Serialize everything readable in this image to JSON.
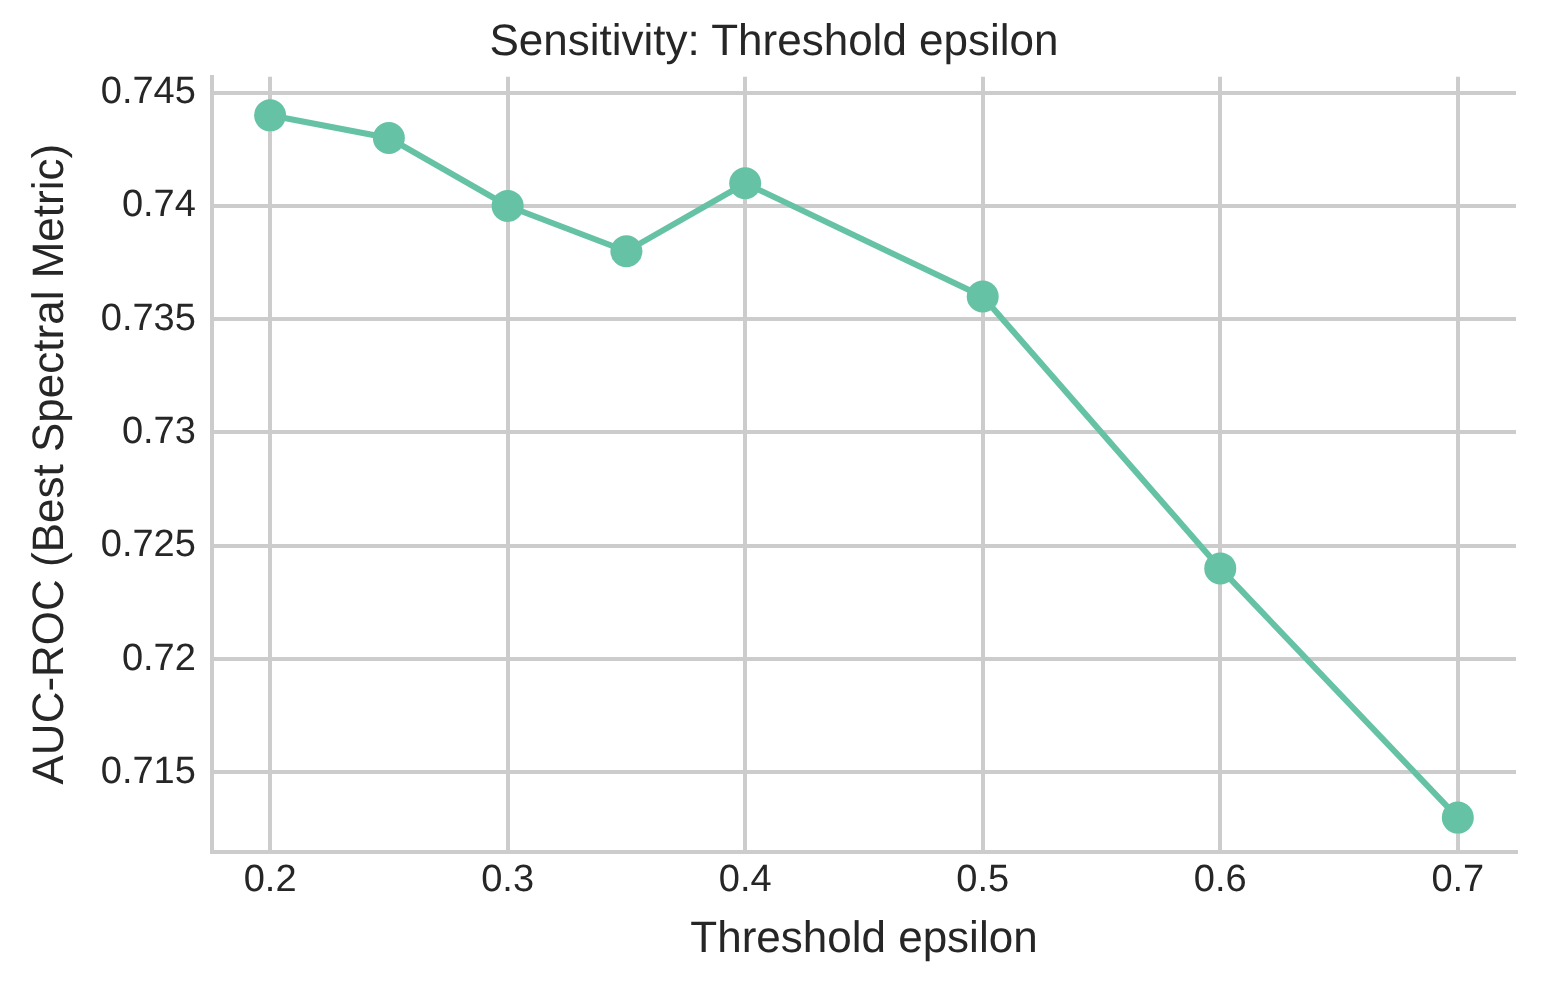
{
  "chart_data": {
    "type": "line",
    "title": "Sensitivity: Threshold epsilon",
    "xlabel": "Threshold epsilon",
    "ylabel": "AUC-ROC (Best Spectral Metric)",
    "x": [
      0.2,
      0.25,
      0.3,
      0.35,
      0.4,
      0.5,
      0.6,
      0.7
    ],
    "series": [
      {
        "color": "#66c2a5",
        "values": [
          0.744,
          0.743,
          0.74,
          0.738,
          0.741,
          0.736,
          0.724,
          0.713
        ]
      }
    ],
    "xlim": [
      0.1755,
      0.7245
    ],
    "xticks": [
      0.2,
      0.3,
      0.4,
      0.5,
      0.6,
      0.7
    ],
    "ylim": [
      0.7115,
      0.7457
    ],
    "yticks": [
      0.715,
      0.72,
      0.725,
      0.73,
      0.735,
      0.74,
      0.745
    ],
    "grid": true,
    "legend": false,
    "marker": "circle",
    "line_style": "solid"
  }
}
